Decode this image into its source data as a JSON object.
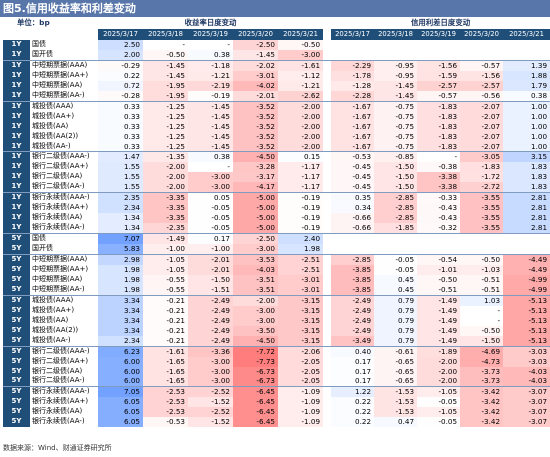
{
  "title": "图5.信用收益率和利差变动",
  "unit_label": "单位：bp",
  "groups": [
    "收益率日度变动",
    "信用利差日度变动"
  ],
  "dates": [
    "2025/3/17",
    "2025/3/18",
    "2025/3/19",
    "2025/3/20",
    "2025/3/21"
  ],
  "source": "数据来源：Wind、财通证券研究所",
  "chart_data": {
    "type": "table",
    "title": "图5.信用收益率和利差变动",
    "unit": "bp",
    "columns": [
      "2025/3/17",
      "2025/3/18",
      "2025/3/19",
      "2025/3/20",
      "2025/3/21"
    ],
    "rows": [
      {
        "tenor": "1Y",
        "name": "国债",
        "yield": [
          "2.50",
          "-",
          "-",
          "-2.50",
          "-0.50"
        ],
        "spread": [
          "",
          "",
          "",
          "",
          ""
        ]
      },
      {
        "tenor": "1Y",
        "name": "国开债",
        "yield": [
          "2.00",
          "-0.50",
          "0.38",
          "-1.45",
          "-3.00"
        ],
        "spread": [
          "",
          "",
          "",
          "",
          ""
        ]
      },
      {
        "tenor": "1Y",
        "name": "中短期票据(AAA)",
        "yield": [
          "-0.29",
          "-1.45",
          "-1.18",
          "-2.02",
          "-1.61"
        ],
        "spread": [
          "-2.29",
          "-0.95",
          "-1.56",
          "-0.57",
          "1.39"
        ],
        "sep": true
      },
      {
        "tenor": "1Y",
        "name": "中短期票据(AA+)",
        "yield": [
          "0.22",
          "-1.45",
          "-1.21",
          "-3.01",
          "-1.12"
        ],
        "spread": [
          "-1.78",
          "-0.95",
          "-1.59",
          "-1.56",
          "1.88"
        ]
      },
      {
        "tenor": "1Y",
        "name": "中短期票据(AA)",
        "yield": [
          "0.72",
          "-1.95",
          "-2.19",
          "-4.02",
          "-1.21"
        ],
        "spread": [
          "-1.28",
          "-1.45",
          "-2.57",
          "-2.57",
          "1.79"
        ]
      },
      {
        "tenor": "1Y",
        "name": "中短期票据(AA-)",
        "yield": [
          "-0.28",
          "-1.95",
          "-0.19",
          "-2.01",
          "-2.62"
        ],
        "spread": [
          "-2.28",
          "-1.45",
          "-0.57",
          "-0.56",
          "0.38"
        ]
      },
      {
        "tenor": "1Y",
        "name": "城投债(AAA)",
        "yield": [
          "0.33",
          "-1.25",
          "-1.45",
          "-3.52",
          "-2.00"
        ],
        "spread": [
          "-1.67",
          "-0.75",
          "-1.83",
          "-2.07",
          "1.00"
        ],
        "sep": true
      },
      {
        "tenor": "1Y",
        "name": "城投债(AA+)",
        "yield": [
          "0.33",
          "-1.25",
          "-1.45",
          "-3.52",
          "-2.00"
        ],
        "spread": [
          "-1.67",
          "-0.75",
          "-1.83",
          "-2.07",
          "1.00"
        ]
      },
      {
        "tenor": "1Y",
        "name": "城投债(AA)",
        "yield": [
          "0.33",
          "-1.25",
          "-1.45",
          "-3.52",
          "-2.00"
        ],
        "spread": [
          "-1.67",
          "-0.75",
          "-1.83",
          "-2.07",
          "1.00"
        ]
      },
      {
        "tenor": "1Y",
        "name": "城投债(AA(2))",
        "yield": [
          "0.33",
          "-1.25",
          "-1.45",
          "-3.52",
          "-2.00"
        ],
        "spread": [
          "-1.67",
          "-0.75",
          "-1.83",
          "-2.07",
          "1.00"
        ]
      },
      {
        "tenor": "1Y",
        "name": "城投债(AA-)",
        "yield": [
          "0.33",
          "-1.25",
          "-1.45",
          "-3.52",
          "-2.00"
        ],
        "spread": [
          "-1.67",
          "-0.75",
          "-1.83",
          "-2.07",
          "1.00"
        ]
      },
      {
        "tenor": "1Y",
        "name": "银行二级债(AAA-)",
        "yield": [
          "1.47",
          "-1.35",
          "0.38",
          "-4.50",
          "0.15"
        ],
        "spread": [
          "-0.53",
          "-0.85",
          "-",
          "-3.05",
          "3.15"
        ],
        "sep": true
      },
      {
        "tenor": "1Y",
        "name": "银行二级债(AA+)",
        "yield": [
          "1.55",
          "-2.00",
          "-",
          "-3.28",
          "-1.17"
        ],
        "spread": [
          "-0.45",
          "-1.50",
          "-0.38",
          "-1.83",
          "1.83"
        ]
      },
      {
        "tenor": "1Y",
        "name": "银行二级债(AA)",
        "yield": [
          "1.55",
          "-2.00",
          "-3.00",
          "-3.17",
          "-1.17"
        ],
        "spread": [
          "-0.45",
          "-1.50",
          "-3.38",
          "-1.72",
          "1.83"
        ]
      },
      {
        "tenor": "1Y",
        "name": "银行二级债(AA-)",
        "yield": [
          "1.55",
          "-2.00",
          "-3.00",
          "-4.17",
          "-1.17"
        ],
        "spread": [
          "-0.45",
          "-1.50",
          "-3.38",
          "-2.72",
          "1.83"
        ]
      },
      {
        "tenor": "1Y",
        "name": "银行永续债(AAA-)",
        "yield": [
          "2.35",
          "-3.35",
          "0.05",
          "-5.00",
          "-0.19"
        ],
        "spread": [
          "0.35",
          "-2.85",
          "-0.33",
          "-3.55",
          "2.81"
        ],
        "sep": true
      },
      {
        "tenor": "1Y",
        "name": "银行永续债(AA+)",
        "yield": [
          "2.34",
          "-3.35",
          "-0.05",
          "-5.00",
          "-0.19"
        ],
        "spread": [
          "0.34",
          "-2.85",
          "-0.43",
          "-3.55",
          "2.81"
        ]
      },
      {
        "tenor": "1Y",
        "name": "银行永续债(AA)",
        "yield": [
          "1.34",
          "-3.35",
          "-0.05",
          "-5.00",
          "-0.19"
        ],
        "spread": [
          "-0.66",
          "-2.85",
          "-0.43",
          "-3.55",
          "2.81"
        ]
      },
      {
        "tenor": "1Y",
        "name": "银行永续债(AA-)",
        "yield": [
          "1.34",
          "-2.35",
          "-0.05",
          "-5.00",
          "-0.19"
        ],
        "spread": [
          "-0.66",
          "-1.85",
          "-0.32",
          "-3.55",
          "2.81"
        ]
      },
      {
        "tenor": "5Y",
        "name": "国债",
        "yield": [
          "7.07",
          "-1.49",
          "0.17",
          "-2.50",
          "2.40"
        ],
        "spread": [
          "",
          "",
          "",
          "",
          ""
        ],
        "sep": true
      },
      {
        "tenor": "5Y",
        "name": "国开债",
        "yield": [
          "5.83",
          "-1.00",
          "-1.00",
          "-3.00",
          "1.98"
        ],
        "spread": [
          "",
          "",
          "",
          "",
          ""
        ]
      },
      {
        "tenor": "5Y",
        "name": "中短期票据(AAA)",
        "yield": [
          "2.98",
          "-1.05",
          "-2.01",
          "-3.53",
          "-2.51"
        ],
        "spread": [
          "-2.85",
          "-0.05",
          "-0.54",
          "-0.50",
          "-4.49"
        ],
        "sep": true
      },
      {
        "tenor": "5Y",
        "name": "中短期票据(AA+)",
        "yield": [
          "1.98",
          "-1.05",
          "-2.01",
          "-4.03",
          "-2.51"
        ],
        "spread": [
          "-3.85",
          "-0.05",
          "-1.01",
          "-1.03",
          "-4.49"
        ]
      },
      {
        "tenor": "5Y",
        "name": "中短期票据(AA)",
        "yield": [
          "1.98",
          "-0.55",
          "-1.50",
          "-3.51",
          "-3.01"
        ],
        "spread": [
          "-3.85",
          "0.45",
          "-0.50",
          "-0.51",
          "-4.99"
        ]
      },
      {
        "tenor": "5Y",
        "name": "中短期票据(AA-)",
        "yield": [
          "1.98",
          "-0.55",
          "-1.51",
          "-3.51",
          "-3.01"
        ],
        "spread": [
          "-3.85",
          "0.45",
          "-0.51",
          "-0.51",
          "-4.99"
        ]
      },
      {
        "tenor": "5Y",
        "name": "城投债(AAA)",
        "yield": [
          "3.34",
          "-0.21",
          "-2.49",
          "-2.00",
          "-3.15"
        ],
        "spread": [
          "-2.49",
          "0.79",
          "-1.49",
          "1.03",
          "-5.13"
        ],
        "sep": true
      },
      {
        "tenor": "5Y",
        "name": "城投债(AA+)",
        "yield": [
          "3.34",
          "-0.21",
          "-2.49",
          "-3.00",
          "-3.15"
        ],
        "spread": [
          "-2.49",
          "0.79",
          "-1.49",
          "-",
          "-5.13"
        ]
      },
      {
        "tenor": "5Y",
        "name": "城投债(AA)",
        "yield": [
          "3.34",
          "-0.21",
          "-2.49",
          "-3.00",
          "-3.15"
        ],
        "spread": [
          "-2.49",
          "0.79",
          "-1.49",
          "-",
          "-5.13"
        ]
      },
      {
        "tenor": "5Y",
        "name": "城投债(AA(2))",
        "yield": [
          "3.34",
          "-0.21",
          "-2.49",
          "-3.50",
          "-3.15"
        ],
        "spread": [
          "-2.49",
          "0.79",
          "-1.49",
          "-0.50",
          "-5.13"
        ]
      },
      {
        "tenor": "5Y",
        "name": "城投债(AA-)",
        "yield": [
          "2.34",
          "-0.21",
          "-2.49",
          "-4.50",
          "-3.15"
        ],
        "spread": [
          "-3.49",
          "0.79",
          "-1.49",
          "-1.50",
          "-5.13"
        ]
      },
      {
        "tenor": "5Y",
        "name": "银行二级债(AAA-)",
        "yield": [
          "6.23",
          "-1.61",
          "-3.36",
          "-7.72",
          "-2.06"
        ],
        "spread": [
          "0.40",
          "-0.61",
          "-1.89",
          "-4.69",
          "-3.03"
        ],
        "sep": true
      },
      {
        "tenor": "5Y",
        "name": "银行二级债(AA+)",
        "yield": [
          "6.00",
          "-1.65",
          "-3.00",
          "-7.73",
          "-2.05"
        ],
        "spread": [
          "0.17",
          "-0.65",
          "-2.00",
          "-4.73",
          "-3.03"
        ]
      },
      {
        "tenor": "5Y",
        "name": "银行二级债(AA)",
        "yield": [
          "6.00",
          "-1.65",
          "-3.00",
          "-6.73",
          "-2.05"
        ],
        "spread": [
          "0.17",
          "-0.65",
          "-2.00",
          "-3.73",
          "-4.03"
        ]
      },
      {
        "tenor": "5Y",
        "name": "银行二级债(AA-)",
        "yield": [
          "6.00",
          "-1.65",
          "-3.00",
          "-6.73",
          "-2.05"
        ],
        "spread": [
          "0.17",
          "-0.65",
          "-2.00",
          "-3.73",
          "-4.03"
        ]
      },
      {
        "tenor": "5Y",
        "name": "银行永续债(AAA-)",
        "yield": [
          "7.05",
          "-2.53",
          "-2.52",
          "-6.45",
          "-1.09"
        ],
        "spread": [
          "1.22",
          "-1.53",
          "-1.05",
          "-3.42",
          "-3.07"
        ],
        "sep": true
      },
      {
        "tenor": "5Y",
        "name": "银行永续债(AA+)",
        "yield": [
          "6.05",
          "-2.53",
          "-1.52",
          "-6.45",
          "-1.09"
        ],
        "spread": [
          "0.22",
          "-1.53",
          "-0.05",
          "-3.42",
          "-3.07"
        ]
      },
      {
        "tenor": "5Y",
        "name": "银行永续债(AA)",
        "yield": [
          "6.05",
          "-2.53",
          "-2.52",
          "-6.45",
          "-1.09"
        ],
        "spread": [
          "0.22",
          "-1.53",
          "-1.05",
          "-3.42",
          "-3.07"
        ]
      },
      {
        "tenor": "5Y",
        "name": "银行永续债(AA-)",
        "yield": [
          "6.05",
          "-0.53",
          "-1.52",
          "-6.45",
          "-1.09"
        ],
        "spread": [
          "0.22",
          "0.47",
          "-0.05",
          "-3.42",
          "-3.07"
        ]
      }
    ]
  }
}
